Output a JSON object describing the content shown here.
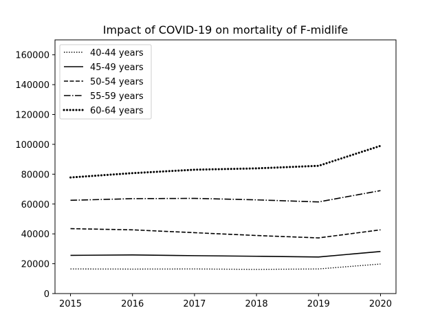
{
  "chart_data": {
    "type": "line",
    "title": "Impact of COVID-19 on mortality of F-midlife",
    "xlabel": "",
    "ylabel": "",
    "x": [
      2015,
      2016,
      2017,
      2018,
      2019,
      2020
    ],
    "x_ticks": [
      "2015",
      "2016",
      "2017",
      "2018",
      "2019",
      "2020"
    ],
    "y_ticks": [
      "0",
      "20000",
      "40000",
      "60000",
      "80000",
      "100000",
      "120000",
      "140000",
      "160000"
    ],
    "xlim": [
      2014.75,
      2020.25
    ],
    "ylim": [
      0,
      170000
    ],
    "grid": false,
    "legend_position": "upper-left",
    "series": [
      {
        "name": "40-44 years",
        "style": "dotted-thin",
        "values": [
          16500,
          16400,
          16500,
          16200,
          16500,
          19800
        ]
      },
      {
        "name": "45-49 years",
        "style": "solid",
        "values": [
          25600,
          25900,
          25400,
          25000,
          24500,
          28200
        ]
      },
      {
        "name": "50-54 years",
        "style": "dashed",
        "values": [
          43500,
          42700,
          40800,
          38900,
          37300,
          42700
        ]
      },
      {
        "name": "55-59 years",
        "style": "dashdot",
        "values": [
          62500,
          63600,
          63800,
          62800,
          61400,
          69000
        ]
      },
      {
        "name": "60-64 years",
        "style": "dotted-thick",
        "values": [
          77800,
          80700,
          83000,
          83900,
          85600,
          99000
        ]
      }
    ]
  }
}
